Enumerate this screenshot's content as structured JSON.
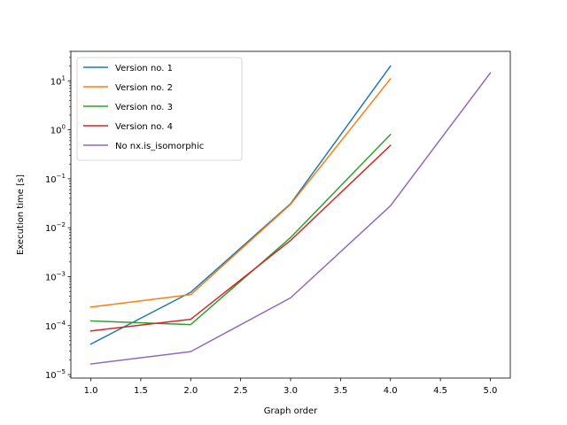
{
  "chart_data": {
    "type": "line",
    "title": "",
    "xlabel": "Graph order",
    "ylabel": "Execution time [s]",
    "yscale": "log",
    "xlim": [
      0.8,
      5.2
    ],
    "ylim": [
      8.5e-06,
      40
    ],
    "xticks": [
      1.0,
      1.5,
      2.0,
      2.5,
      3.0,
      3.5,
      4.0,
      4.5,
      5.0
    ],
    "xtick_labels": [
      "1.0",
      "1.5",
      "2.0",
      "2.5",
      "3.0",
      "3.5",
      "4.0",
      "4.5",
      "5.0"
    ],
    "yticks": [
      -5,
      -4,
      -3,
      -2,
      -1,
      0,
      1
    ],
    "ytick_labels": [
      {
        "base": "10",
        "exp": "−5"
      },
      {
        "base": "10",
        "exp": "−4"
      },
      {
        "base": "10",
        "exp": "−3"
      },
      {
        "base": "10",
        "exp": "−2"
      },
      {
        "base": "10",
        "exp": "−1"
      },
      {
        "base": "10",
        "exp": "0"
      },
      {
        "base": "10",
        "exp": "1"
      }
    ],
    "legend_position": "upper-left",
    "series": [
      {
        "name": "Version no. 1",
        "color": "#1f77b4",
        "x": [
          1,
          2,
          3,
          4
        ],
        "values": [
          4.2e-05,
          0.00048,
          0.031,
          20.0
        ]
      },
      {
        "name": "Version no. 2",
        "color": "#ff7f0e",
        "x": [
          1,
          2,
          3,
          4
        ],
        "values": [
          0.00024,
          0.00043,
          0.03,
          11.0
        ]
      },
      {
        "name": "Version no. 3",
        "color": "#2ca02c",
        "x": [
          1,
          2,
          3,
          4
        ],
        "values": [
          0.000125,
          0.000105,
          0.0063,
          0.8
        ]
      },
      {
        "name": "Version no. 4",
        "color": "#d62728",
        "x": [
          1,
          2,
          3,
          4
        ],
        "values": [
          7.8e-05,
          0.000135,
          0.0055,
          0.48
        ]
      },
      {
        "name": "No nx.is_isomorphic",
        "color": "#9467bd",
        "x": [
          1,
          2,
          3,
          4,
          5
        ],
        "values": [
          1.65e-05,
          2.95e-05,
          0.00037,
          0.028,
          14.5
        ]
      }
    ]
  }
}
